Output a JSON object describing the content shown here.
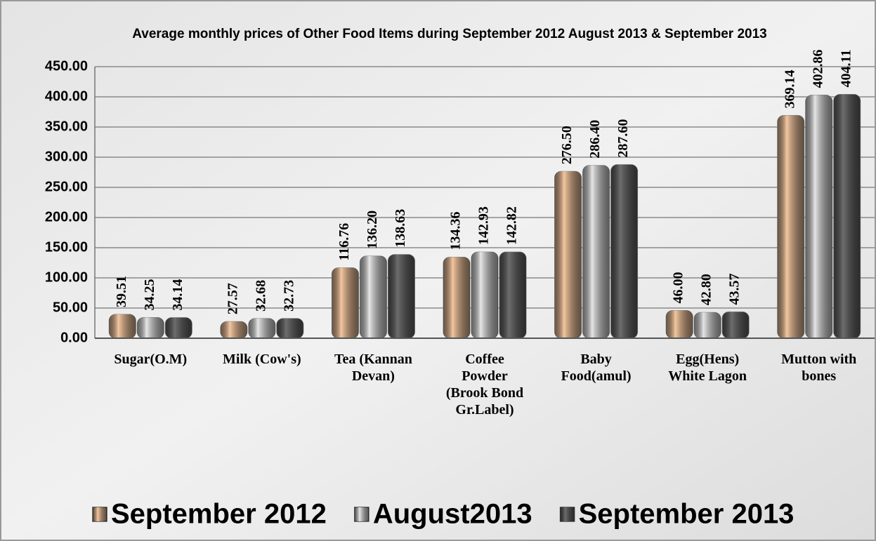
{
  "chart_data": {
    "type": "bar",
    "title": "Average monthly prices of Other Food Items during  September  2012 August  2013 & September 2013",
    "categories": [
      "Sugar(O.M)",
      "Milk (Cow's)",
      "Tea (Kannan Devan)",
      "Coffee Powder (Brook Bond Gr.Label)",
      "Baby Food(amul)",
      "Egg(Hens) White Lagon",
      "Mutton with bones"
    ],
    "series": [
      {
        "name": "September 2012",
        "color": "#f4c7a0",
        "values": [
          39.51,
          27.57,
          116.76,
          134.36,
          276.5,
          46.0,
          369.14
        ],
        "value_labels": [
          "39.51",
          "27.57",
          "116.76",
          "134.36",
          "276.50",
          "46.00",
          "369.14"
        ]
      },
      {
        "name": "August2013",
        "color": "#e6e6e6",
        "values": [
          34.25,
          32.68,
          136.2,
          142.93,
          286.4,
          42.8,
          402.86
        ],
        "value_labels": [
          "34.25",
          "32.68",
          "136.20",
          "142.93",
          "286.40",
          "42.80",
          "402.86"
        ]
      },
      {
        "name": "September 2013",
        "color": "#6e6e6e",
        "values": [
          34.14,
          32.73,
          138.63,
          142.82,
          287.6,
          43.57,
          404.11
        ],
        "value_labels": [
          "34.14",
          "32.73",
          "138.63",
          "142.82",
          "287.60",
          "43.57",
          "404.11"
        ]
      }
    ],
    "ylim": [
      0,
      450
    ],
    "yticks": [
      {
        "value": 0,
        "label": "0.00"
      },
      {
        "value": 50,
        "label": "50.00"
      },
      {
        "value": 100,
        "label": "100.00"
      },
      {
        "value": 150,
        "label": "150.00"
      },
      {
        "value": 200,
        "label": "200.00"
      },
      {
        "value": 250,
        "label": "250.00"
      },
      {
        "value": 300,
        "label": "300.00"
      },
      {
        "value": 350,
        "label": "350.00"
      },
      {
        "value": 400,
        "label": "400.00"
      },
      {
        "value": 450,
        "label": "450.00"
      }
    ],
    "grid": true,
    "legend": "bottom"
  }
}
